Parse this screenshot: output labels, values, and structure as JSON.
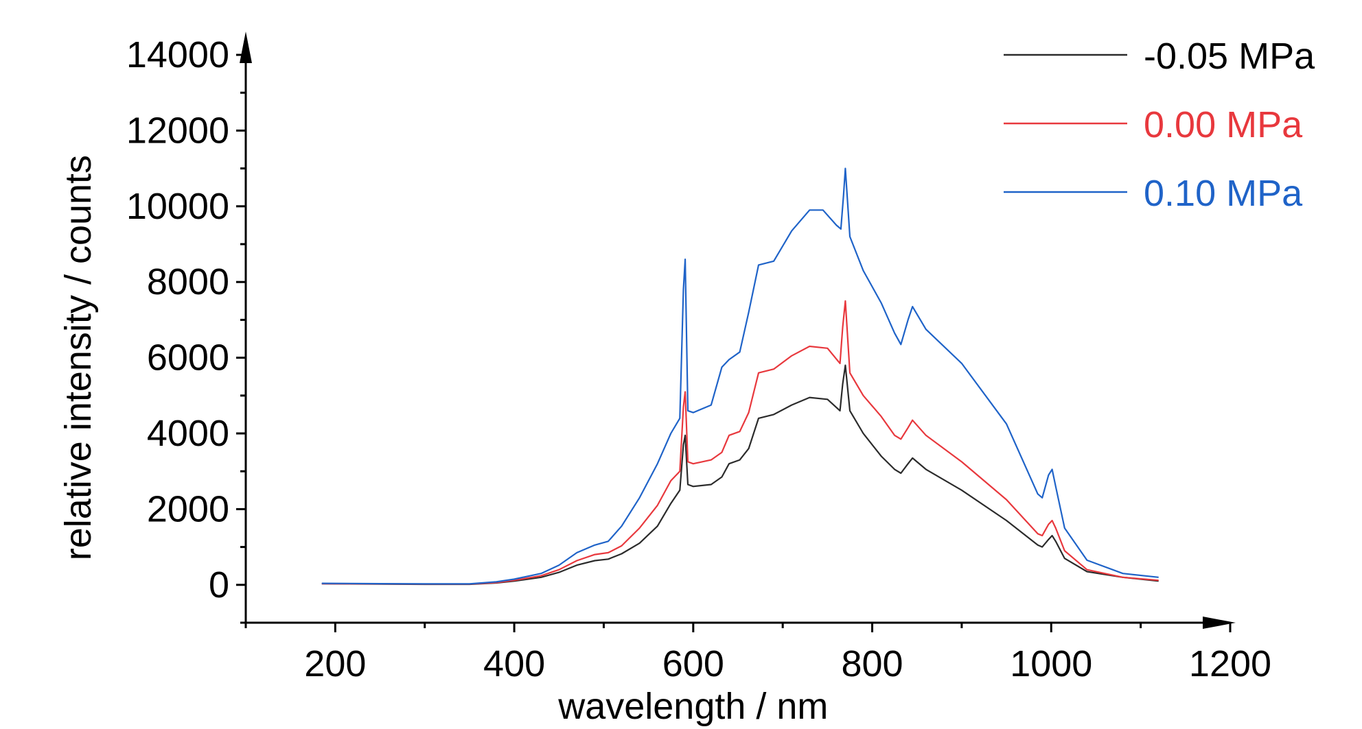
{
  "chart_data": {
    "type": "line",
    "xlabel": "wavelength / nm",
    "ylabel": "relative intensity / counts",
    "xlim": [
      100,
      1200
    ],
    "ylim": [
      -1000,
      14000
    ],
    "x_ticks": [
      200,
      400,
      600,
      800,
      1000,
      1200
    ],
    "y_ticks": [
      0,
      2000,
      4000,
      6000,
      8000,
      10000,
      12000,
      14000
    ],
    "legend_position": "top-right",
    "grid": false,
    "series": [
      {
        "name": "-0.05 MPa",
        "color": "#2b2b2b",
        "points": [
          [
            185,
            30
          ],
          [
            250,
            20
          ],
          [
            300,
            15
          ],
          [
            350,
            15
          ],
          [
            380,
            50
          ],
          [
            400,
            100
          ],
          [
            430,
            200
          ],
          [
            450,
            330
          ],
          [
            470,
            520
          ],
          [
            490,
            640
          ],
          [
            505,
            680
          ],
          [
            520,
            820
          ],
          [
            540,
            1100
          ],
          [
            560,
            1550
          ],
          [
            575,
            2150
          ],
          [
            585,
            2500
          ],
          [
            589,
            3700
          ],
          [
            591,
            3950
          ],
          [
            594,
            2650
          ],
          [
            600,
            2600
          ],
          [
            620,
            2650
          ],
          [
            632,
            2850
          ],
          [
            640,
            3200
          ],
          [
            652,
            3300
          ],
          [
            662,
            3600
          ],
          [
            673,
            4400
          ],
          [
            690,
            4500
          ],
          [
            710,
            4750
          ],
          [
            730,
            4950
          ],
          [
            750,
            4900
          ],
          [
            764,
            4600
          ],
          [
            767,
            5300
          ],
          [
            770,
            5800
          ],
          [
            775,
            4600
          ],
          [
            790,
            4000
          ],
          [
            810,
            3400
          ],
          [
            825,
            3050
          ],
          [
            832,
            2950
          ],
          [
            840,
            3200
          ],
          [
            845,
            3350
          ],
          [
            860,
            3050
          ],
          [
            900,
            2500
          ],
          [
            950,
            1700
          ],
          [
            985,
            1050
          ],
          [
            990,
            1000
          ],
          [
            997,
            1200
          ],
          [
            1001,
            1300
          ],
          [
            1005,
            1150
          ],
          [
            1015,
            700
          ],
          [
            1040,
            350
          ],
          [
            1080,
            200
          ],
          [
            1120,
            100
          ]
        ]
      },
      {
        "name": "0.00 MPa",
        "color": "#e8383d",
        "points": [
          [
            185,
            30
          ],
          [
            250,
            25
          ],
          [
            300,
            20
          ],
          [
            350,
            20
          ],
          [
            380,
            60
          ],
          [
            400,
            120
          ],
          [
            430,
            240
          ],
          [
            450,
            400
          ],
          [
            470,
            640
          ],
          [
            490,
            800
          ],
          [
            505,
            850
          ],
          [
            520,
            1030
          ],
          [
            540,
            1500
          ],
          [
            560,
            2100
          ],
          [
            575,
            2750
          ],
          [
            585,
            3000
          ],
          [
            589,
            4700
          ],
          [
            591,
            5100
          ],
          [
            594,
            3250
          ],
          [
            600,
            3200
          ],
          [
            620,
            3300
          ],
          [
            632,
            3500
          ],
          [
            640,
            3950
          ],
          [
            652,
            4050
          ],
          [
            662,
            4550
          ],
          [
            673,
            5600
          ],
          [
            690,
            5700
          ],
          [
            710,
            6050
          ],
          [
            730,
            6300
          ],
          [
            750,
            6250
          ],
          [
            764,
            5850
          ],
          [
            767,
            6800
          ],
          [
            770,
            7500
          ],
          [
            775,
            5600
          ],
          [
            790,
            5000
          ],
          [
            810,
            4450
          ],
          [
            825,
            3950
          ],
          [
            832,
            3850
          ],
          [
            840,
            4150
          ],
          [
            845,
            4350
          ],
          [
            860,
            3950
          ],
          [
            900,
            3250
          ],
          [
            950,
            2250
          ],
          [
            985,
            1350
          ],
          [
            990,
            1300
          ],
          [
            997,
            1600
          ],
          [
            1001,
            1700
          ],
          [
            1005,
            1500
          ],
          [
            1015,
            900
          ],
          [
            1040,
            400
          ],
          [
            1080,
            200
          ],
          [
            1120,
            120
          ]
        ]
      },
      {
        "name": "0.10 MPa",
        "color": "#1f63c8",
        "points": [
          [
            185,
            40
          ],
          [
            250,
            30
          ],
          [
            300,
            25
          ],
          [
            350,
            25
          ],
          [
            380,
            80
          ],
          [
            400,
            150
          ],
          [
            430,
            300
          ],
          [
            450,
            520
          ],
          [
            470,
            850
          ],
          [
            490,
            1050
          ],
          [
            505,
            1150
          ],
          [
            520,
            1550
          ],
          [
            540,
            2300
          ],
          [
            560,
            3200
          ],
          [
            575,
            4000
          ],
          [
            585,
            4400
          ],
          [
            589,
            7800
          ],
          [
            591,
            8600
          ],
          [
            594,
            4600
          ],
          [
            600,
            4550
          ],
          [
            620,
            4750
          ],
          [
            632,
            5750
          ],
          [
            640,
            5950
          ],
          [
            652,
            6150
          ],
          [
            662,
            7200
          ],
          [
            673,
            8450
          ],
          [
            690,
            8550
          ],
          [
            710,
            9350
          ],
          [
            730,
            9900
          ],
          [
            745,
            9900
          ],
          [
            760,
            9500
          ],
          [
            765,
            9400
          ],
          [
            768,
            10300
          ],
          [
            770,
            11000
          ],
          [
            775,
            9200
          ],
          [
            790,
            8300
          ],
          [
            810,
            7450
          ],
          [
            825,
            6650
          ],
          [
            832,
            6350
          ],
          [
            840,
            7000
          ],
          [
            845,
            7350
          ],
          [
            860,
            6750
          ],
          [
            900,
            5850
          ],
          [
            950,
            4250
          ],
          [
            985,
            2400
          ],
          [
            990,
            2300
          ],
          [
            997,
            2900
          ],
          [
            1001,
            3050
          ],
          [
            1005,
            2600
          ],
          [
            1015,
            1500
          ],
          [
            1040,
            650
          ],
          [
            1080,
            300
          ],
          [
            1120,
            200
          ]
        ]
      }
    ]
  }
}
